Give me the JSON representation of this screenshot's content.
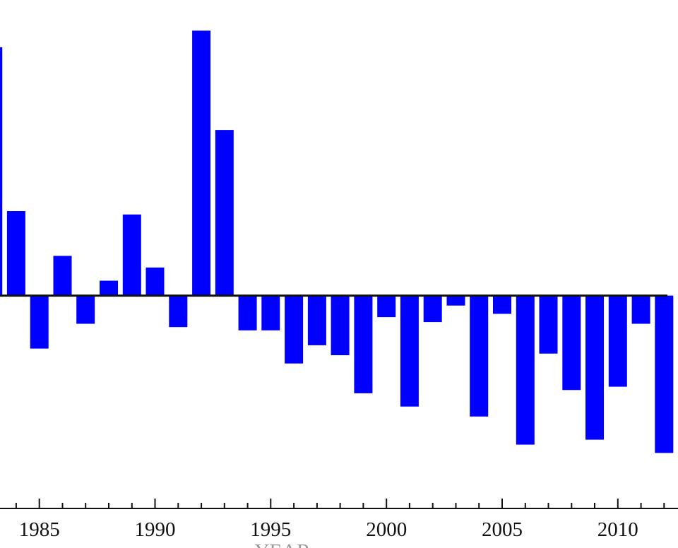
{
  "chart_data": {
    "type": "bar",
    "title": "",
    "xlabel": "YEAR",
    "ylabel": "",
    "x": [
      1983,
      1984,
      1985,
      1986,
      1987,
      1988,
      1989,
      1990,
      1991,
      1992,
      1993,
      1994,
      1995,
      1996,
      1997,
      1998,
      1999,
      2000,
      2001,
      2002,
      2003,
      2004,
      2005,
      2006,
      2007,
      2008,
      2009,
      2010,
      2011,
      2012
    ],
    "values": [
      1.5,
      0.51,
      -0.32,
      0.24,
      -0.17,
      0.09,
      0.49,
      0.17,
      -0.19,
      1.6,
      1.0,
      -0.21,
      -0.21,
      -0.41,
      -0.3,
      -0.36,
      -0.59,
      -0.13,
      -0.67,
      -0.16,
      -0.06,
      -0.73,
      -0.11,
      -0.9,
      -0.35,
      -0.57,
      -0.87,
      -0.55,
      -0.17,
      -0.95
    ],
    "ylim": [
      -1.2,
      1.7
    ],
    "xticks": [
      1985,
      1990,
      1995,
      2000,
      2005,
      2010
    ],
    "xlim": [
      1983.3,
      2012.6
    ],
    "grid": false,
    "colors": {
      "bar": "#0000ff",
      "baseline": "#111111",
      "axis": "#111111"
    }
  }
}
